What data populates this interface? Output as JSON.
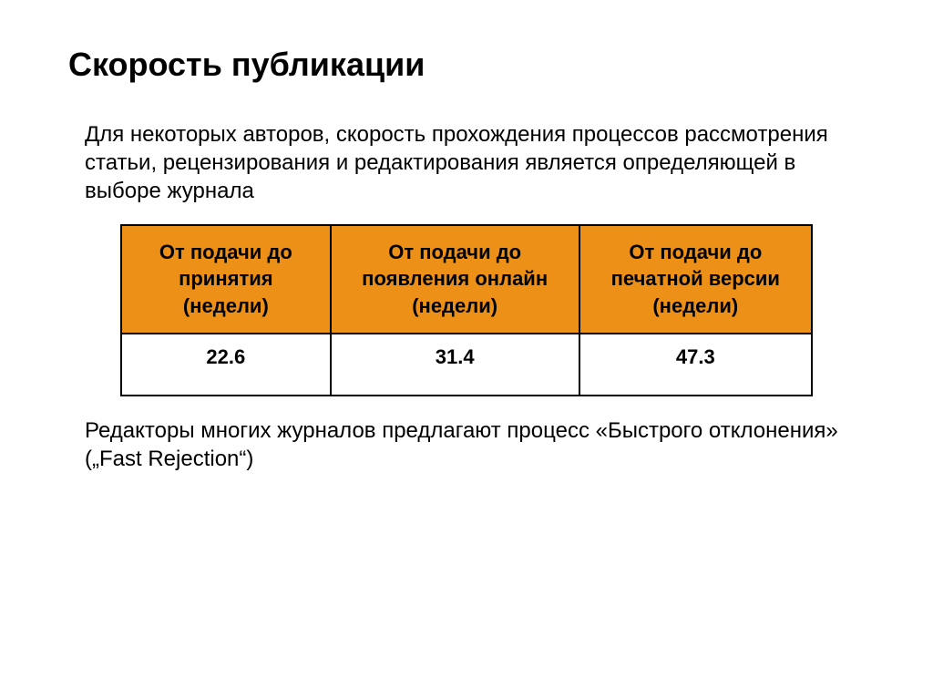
{
  "title": "Скорость публикации",
  "intro": "Для некоторых авторов, скорость прохождения процессов рассмотрения статьи, рецензирования и редактирования является определяющей в выборе журнала",
  "table": {
    "header_bg": "#ed9017",
    "border_color": "#000000",
    "cell_bg": "#ffffff",
    "text_color": "#000000",
    "columns": [
      "От подачи до принятия (недели)",
      "От подачи до появления онлайн (недели)",
      "От подачи до печатной версии (недели)"
    ],
    "rows": [
      [
        "22.6",
        "31.4",
        "47.3"
      ]
    ]
  },
  "footer": "Редакторы многих журналов предлагают  процесс «Быстрого отклонения» („Fast Rejection“)"
}
